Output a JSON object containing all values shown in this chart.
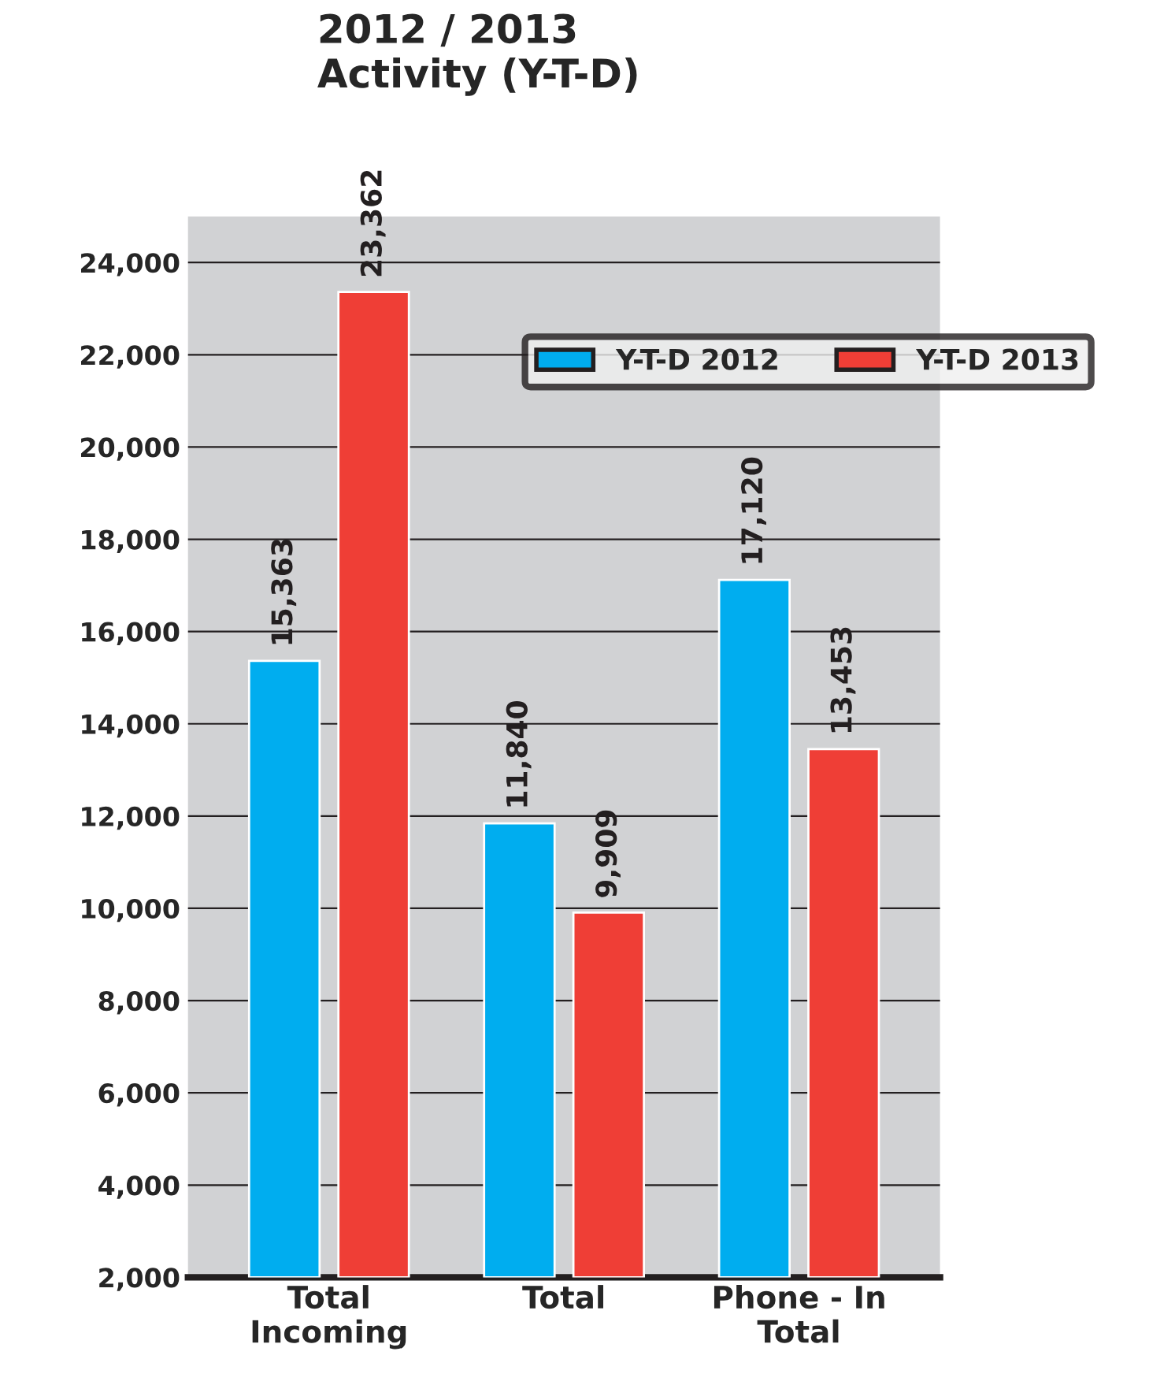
{
  "chart_data": {
    "type": "bar",
    "title": "2012 / 2013",
    "subtitle": "Activity (Y-T-D)",
    "categories": [
      "Total\nIncoming",
      "Total",
      "Phone - In\nTotal"
    ],
    "series": [
      {
        "name": "Y-T-D 2012",
        "color": "#00adef",
        "values": [
          15363,
          11840,
          17120
        ],
        "value_labels": [
          "15,363",
          "11,840",
          "17,120"
        ]
      },
      {
        "name": "Y-T-D 2013",
        "color": "#ef3e36",
        "values": [
          23362,
          9909,
          13453
        ],
        "value_labels": [
          "23,362",
          "9,909",
          "13,453"
        ]
      }
    ],
    "ylim": [
      2000,
      25000
    ],
    "yticks": [
      {
        "value": 2000,
        "label": "2,000"
      },
      {
        "value": 4000,
        "label": "4,000"
      },
      {
        "value": 6000,
        "label": "6,000"
      },
      {
        "value": 8000,
        "label": "8,000"
      },
      {
        "value": 10000,
        "label": "10,000"
      },
      {
        "value": 12000,
        "label": "12,000"
      },
      {
        "value": 14000,
        "label": "14,000"
      },
      {
        "value": 16000,
        "label": "16,000"
      },
      {
        "value": 18000,
        "label": "18,000"
      },
      {
        "value": 20000,
        "label": "20,000"
      },
      {
        "value": 22000,
        "label": "22,000"
      },
      {
        "value": 24000,
        "label": "24,000"
      }
    ],
    "grid": "y",
    "legend": "top right"
  }
}
